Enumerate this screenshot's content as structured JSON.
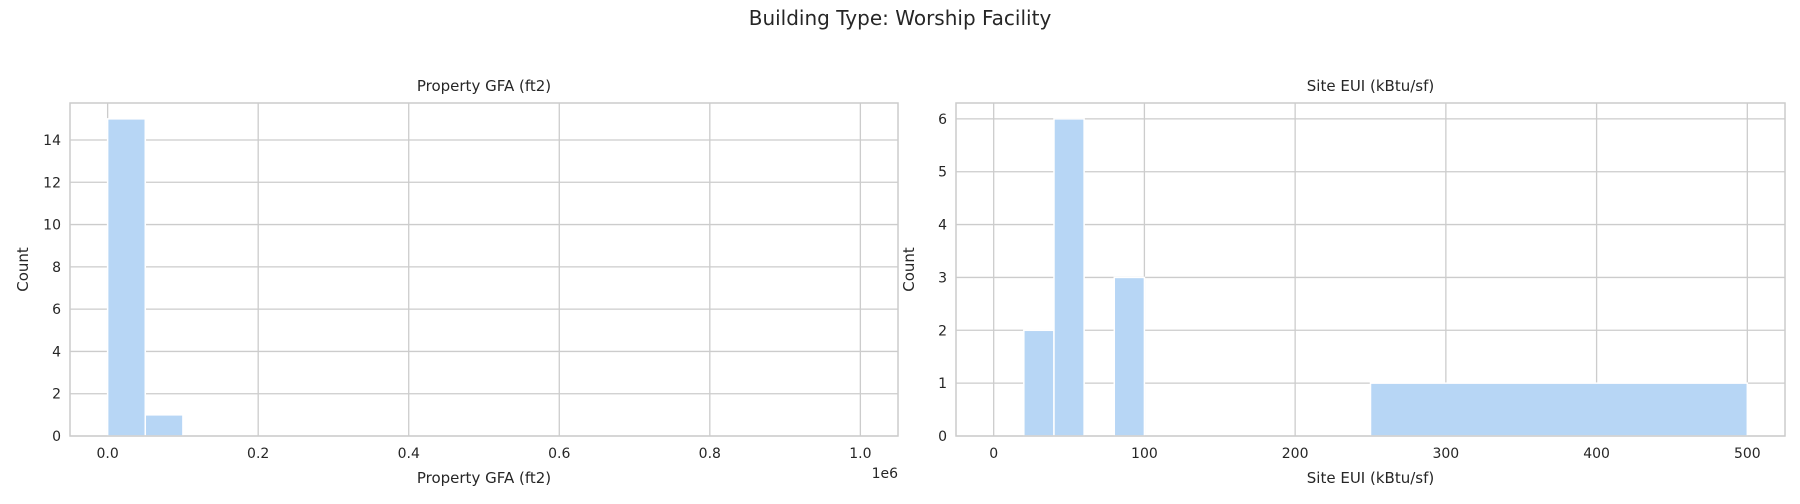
{
  "figure": {
    "suptitle": "Building Type: Worship Facility"
  },
  "colors": {
    "bar": "#b7d6f5",
    "grid": "#cccccc",
    "spine": "#cccccc",
    "text": "#262626"
  },
  "chart_data": [
    {
      "type": "bar",
      "title": "Property GFA (ft2)",
      "xlabel": "Property GFA (ft2)",
      "ylabel": "Count",
      "offset_text": "1e6",
      "xlim": [
        -0.05,
        1.05
      ],
      "ylim": [
        0,
        15.75
      ],
      "xticks": [
        0.0,
        0.2,
        0.4,
        0.6,
        0.8,
        1.0
      ],
      "xtick_labels": [
        "0.0",
        "0.2",
        "0.4",
        "0.6",
        "0.8",
        "1.0"
      ],
      "yticks": [
        0,
        2,
        4,
        6,
        8,
        10,
        12,
        14
      ],
      "ytick_labels": [
        "0",
        "2",
        "4",
        "6",
        "8",
        "10",
        "12",
        "14"
      ],
      "grid": true,
      "bins": [
        {
          "x0": 0.0,
          "x1": 0.05,
          "count": 15
        },
        {
          "x0": 0.05,
          "x1": 0.1,
          "count": 1
        }
      ]
    },
    {
      "type": "bar",
      "title": "Site EUI (kBtu/sf)",
      "xlabel": "Site EUI (kBtu/sf)",
      "ylabel": "Count",
      "xlim": [
        -25,
        525
      ],
      "ylim": [
        0,
        6.3
      ],
      "xticks": [
        0,
        100,
        200,
        300,
        400,
        500
      ],
      "xtick_labels": [
        "0",
        "100",
        "200",
        "300",
        "400",
        "500"
      ],
      "yticks": [
        0,
        1,
        2,
        3,
        4,
        5,
        6
      ],
      "ytick_labels": [
        "0",
        "1",
        "2",
        "3",
        "4",
        "5",
        "6"
      ],
      "grid": true,
      "bins": [
        {
          "x0": 20,
          "x1": 40,
          "count": 2
        },
        {
          "x0": 40,
          "x1": 60,
          "count": 6
        },
        {
          "x0": 80,
          "x1": 100,
          "count": 3
        },
        {
          "x0": 250,
          "x1": 500,
          "count": 1
        }
      ]
    }
  ]
}
